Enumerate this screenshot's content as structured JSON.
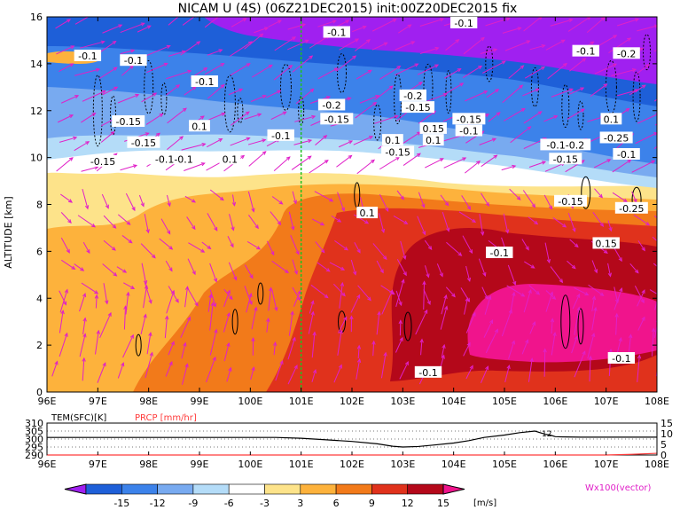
{
  "chart_data": [
    {
      "type": "heatmap",
      "title": "NICAM U (4S) (06Z21DEC2015) init:00Z20DEC2015 fix",
      "ylabel": "ALTITUDE [km]",
      "xlabel": "",
      "x_ticks": [
        "96E",
        "97E",
        "98E",
        "99E",
        "100E",
        "101E",
        "102E",
        "103E",
        "104E",
        "105E",
        "106E",
        "107E",
        "108E"
      ],
      "y_ticks": [
        "0",
        "2",
        "4",
        "6",
        "8",
        "10",
        "12",
        "14",
        "16"
      ],
      "xlim": [
        96,
        108
      ],
      "ylim": [
        0,
        16
      ],
      "marker_line_x": 101,
      "contour_labels": [
        {
          "text": "-0.1",
          "x": 96.8,
          "y": 14.3
        },
        {
          "text": "-0.1",
          "x": 97.7,
          "y": 14.1
        },
        {
          "text": "-0.1",
          "x": 99.1,
          "y": 13.2
        },
        {
          "text": "-0.15",
          "x": 97.6,
          "y": 11.5
        },
        {
          "text": "0.1",
          "x": 99.0,
          "y": 11.3
        },
        {
          "text": "-0.15",
          "x": 97.9,
          "y": 10.6
        },
        {
          "text": "-0.15",
          "x": 97.1,
          "y": 9.8
        },
        {
          "text": "-0.1-0.1",
          "x": 98.5,
          "y": 9.9
        },
        {
          "text": "0.1",
          "x": 99.6,
          "y": 9.9
        },
        {
          "text": "-0.1",
          "x": 100.6,
          "y": 10.9
        },
        {
          "text": "-0.1",
          "x": 101.7,
          "y": 15.3
        },
        {
          "text": "-0.2",
          "x": 101.6,
          "y": 12.2
        },
        {
          "text": "-0.15",
          "x": 101.7,
          "y": 11.6
        },
        {
          "text": "-0.1",
          "x": 104.2,
          "y": 15.7
        },
        {
          "text": "-0.2",
          "x": 103.2,
          "y": 12.6
        },
        {
          "text": "-0.15",
          "x": 103.3,
          "y": 12.1
        },
        {
          "text": "-0.15",
          "x": 104.3,
          "y": 11.6
        },
        {
          "text": "0.1",
          "x": 102.8,
          "y": 10.7
        },
        {
          "text": "0.1",
          "x": 103.6,
          "y": 10.7
        },
        {
          "text": "0.15",
          "x": 103.6,
          "y": 11.2
        },
        {
          "text": "-0.1",
          "x": 104.3,
          "y": 11.1
        },
        {
          "text": "-0.15",
          "x": 102.9,
          "y": 10.2
        },
        {
          "text": "-0.1-0.2",
          "x": 106.2,
          "y": 10.5
        },
        {
          "text": "-0.15",
          "x": 106.2,
          "y": 9.9
        },
        {
          "text": "-0.1",
          "x": 106.6,
          "y": 14.5
        },
        {
          "text": "-0.2",
          "x": 107.4,
          "y": 14.4
        },
        {
          "text": "0.1",
          "x": 107.1,
          "y": 11.6
        },
        {
          "text": "-0.25",
          "x": 107.2,
          "y": 10.8
        },
        {
          "text": "-0.1",
          "x": 107.4,
          "y": 10.1
        },
        {
          "text": "0.1",
          "x": 102.3,
          "y": 7.6
        },
        {
          "text": "-0.15",
          "x": 106.3,
          "y": 8.1
        },
        {
          "text": "-0.25",
          "x": 107.5,
          "y": 7.8
        },
        {
          "text": "0.15",
          "x": 107.0,
          "y": 6.3
        },
        {
          "text": "-0.1",
          "x": 104.9,
          "y": 5.9
        },
        {
          "text": "-0.1",
          "x": 103.5,
          "y": 0.8
        },
        {
          "text": "-0.1",
          "x": 107.3,
          "y": 1.4
        }
      ],
      "colorbar": {
        "levels": [
          "-15",
          "-12",
          "-9",
          "-6",
          "-3",
          "3",
          "6",
          "9",
          "12",
          "15"
        ],
        "unit": "[m/s]",
        "colors": [
          "#a020f0",
          "#1e5fd8",
          "#3c82ea",
          "#78aaf0",
          "#b4dcf8",
          "#ffffff",
          "#fde38a",
          "#fdb23c",
          "#f27a1a",
          "#e0321c",
          "#b4081a",
          "#f0148c"
        ]
      },
      "vector_label": "Wx100(vector)"
    },
    {
      "type": "line",
      "series_labels": [
        "TEM(SFC)[K]",
        "PRCP [mm/hr]"
      ],
      "series_colors": [
        "#000000",
        "#ff3a3a"
      ],
      "left_ticks": [
        "310",
        "305",
        "300",
        "295",
        "290"
      ],
      "right_ticks": [
        "15",
        "10",
        "5",
        "0"
      ],
      "left_ylim": [
        290,
        310
      ],
      "right_ylim": [
        0,
        15
      ],
      "x_ticks": [
        "96E",
        "97E",
        "98E",
        "99E",
        "100E",
        "101E",
        "102E",
        "103E",
        "104E",
        "105E",
        "106E",
        "107E",
        "108E"
      ],
      "x": [
        96,
        97,
        98,
        99,
        100,
        100.5,
        101,
        101.5,
        102,
        102.5,
        102.8,
        103,
        103.3,
        103.6,
        104,
        104.3,
        104.6,
        105,
        105.3,
        105.6,
        105.8,
        105.9,
        106,
        106.2,
        106.5,
        107,
        107.5,
        108
      ],
      "tem_values": [
        301,
        301,
        301,
        301,
        301,
        301,
        300.5,
        299.5,
        298.5,
        297,
        295.5,
        295,
        295.3,
        296.2,
        297.5,
        299,
        301,
        302.5,
        304,
        305,
        303,
        302.5,
        301.5,
        301.3,
        301.2,
        301.2,
        301.2,
        301.2
      ],
      "prcp_values": [
        0,
        0,
        0,
        0,
        0,
        0,
        0,
        0,
        0,
        0,
        0,
        0,
        0,
        0,
        0,
        0,
        0,
        0,
        0,
        0,
        0,
        0,
        0,
        0,
        0,
        0,
        0.3,
        0.8
      ],
      "callout": "12"
    }
  ]
}
